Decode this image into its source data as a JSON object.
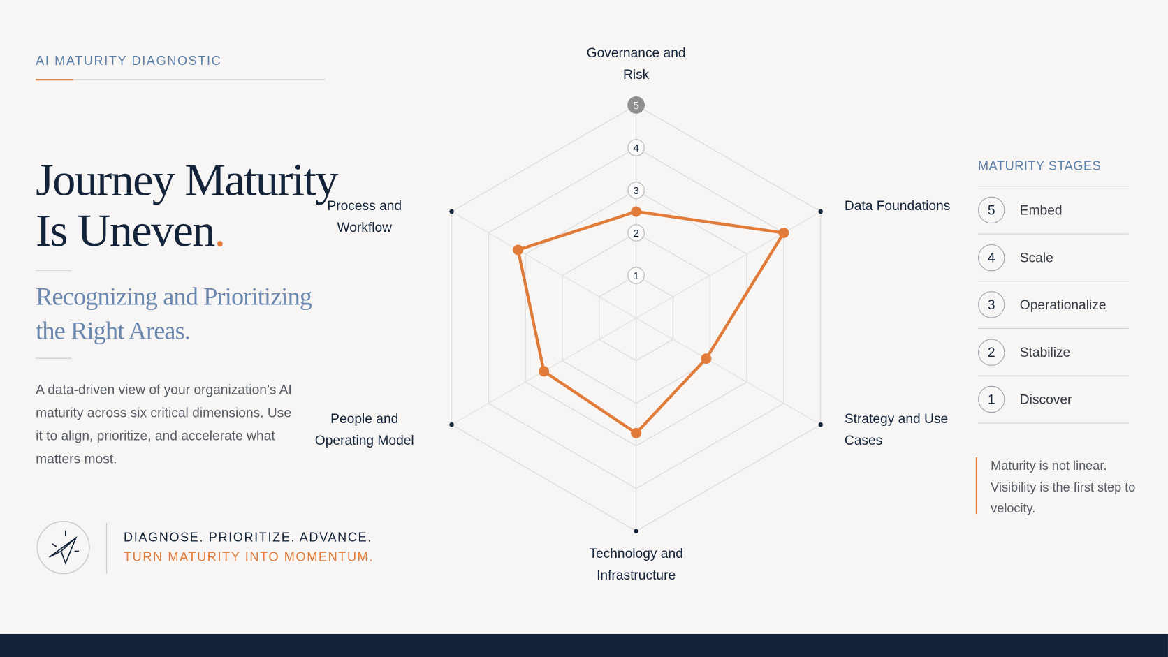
{
  "kicker": "AI MATURITY DIAGNOSTIC",
  "title": "Journey Maturity Is Uneven",
  "title_mark": ".",
  "subtitle": "Recognizing and Prioritizing the Right Areas.",
  "description": "A data-driven view of your organization’s AI maturity across six critical dimensions. Use it to align, prioritize, and accelerate what matters most.",
  "tagline": [
    "DIAGNOSE. PRIORITIZE. ADVANCE.",
    "TURN MATURITY INTO MOMENTUM."
  ],
  "stages_title": "MATURITY STAGES",
  "stages": [
    {
      "level": "5",
      "name": "Embed"
    },
    {
      "level": "4",
      "name": "Scale"
    },
    {
      "level": "3",
      "name": "Operationalize"
    },
    {
      "level": "2",
      "name": "Stabilize"
    },
    {
      "level": "1",
      "name": "Discover"
    }
  ],
  "note": "Maturity is not linear. Visibility is the first step to velocity.",
  "chart_data": {
    "type": "radar",
    "categories": [
      "Governance and Risk",
      "Data Foundations",
      "Strategy and Use Cases",
      "Technology and Infrastructure",
      "People and Operating Model",
      "Process and Workflow"
    ],
    "series": [
      {
        "color": "#e07b39",
        "values": [
          2.5,
          4,
          1.9,
          2.7,
          2.5,
          3.2
        ]
      }
    ],
    "rlim": [
      0,
      5
    ],
    "rticks": [
      1,
      2,
      3,
      4,
      5
    ],
    "grid": true
  }
}
